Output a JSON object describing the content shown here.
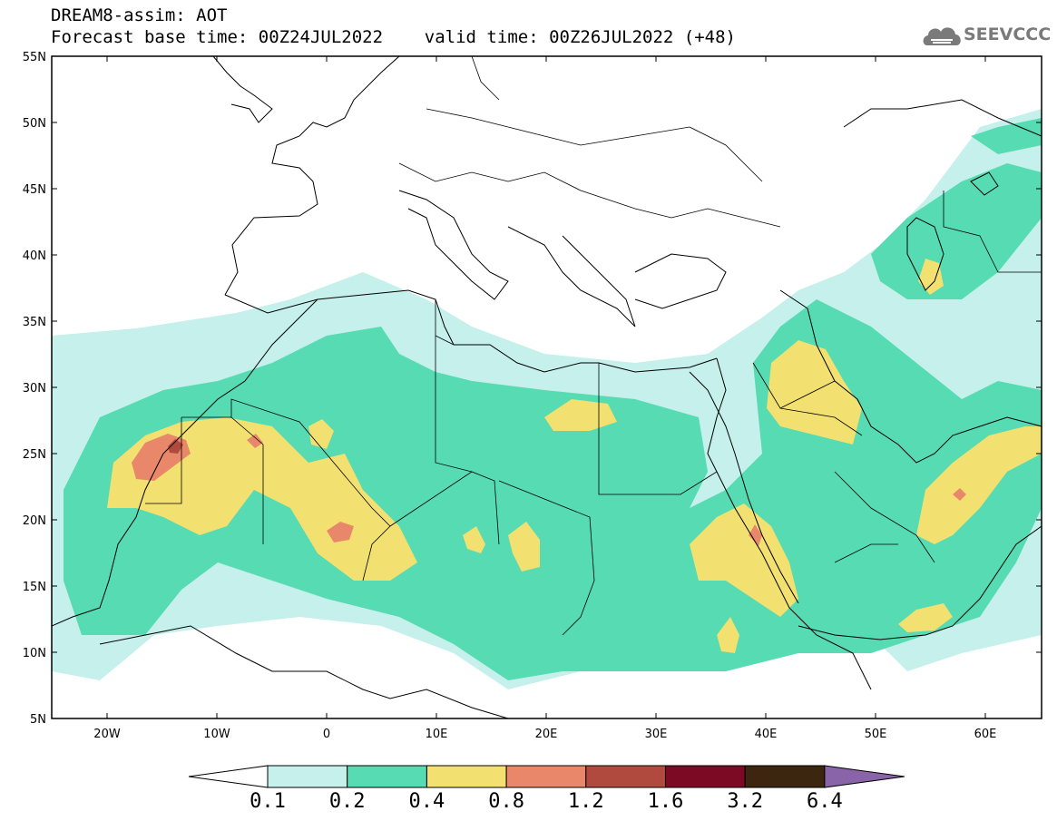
{
  "header": {
    "title": "DREAM8-assim: AOT",
    "subtitle": "Forecast base time: 00Z24JUL2022    valid time: 00Z26JUL2022 (+48)"
  },
  "logo": {
    "text": "SEEVCCC",
    "icon": "cloud-icon"
  },
  "map": {
    "lon_range": [
      -25,
      65
    ],
    "lat_range": [
      5,
      55
    ],
    "lat_labels": [
      "55N",
      "50N",
      "45N",
      "40N",
      "35N",
      "30N",
      "25N",
      "20N",
      "15N",
      "10N",
      "5N"
    ],
    "lon_labels": [
      "20W",
      "10W",
      "0",
      "10E",
      "20E",
      "30E",
      "40E",
      "50E",
      "60E"
    ]
  },
  "colorbar": {
    "labels": [
      "0.1",
      "0.2",
      "0.4",
      "0.8",
      "1.2",
      "1.6",
      "3.2",
      "6.4"
    ],
    "colors": [
      "#ffffff",
      "#c5f0eb",
      "#56dbb2",
      "#f2e070",
      "#e8876a",
      "#b04a3f",
      "#7c0a25",
      "#3d2610",
      "#8a64a8"
    ]
  }
}
